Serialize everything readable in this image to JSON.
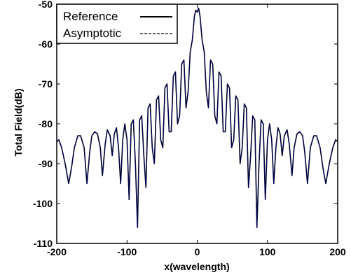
{
  "chart_data": {
    "type": "line",
    "title": "",
    "xlabel": "x(wavelength)",
    "ylabel": "Total Field(dB)",
    "xlim": [
      -200,
      200
    ],
    "ylim": [
      -110,
      -50
    ],
    "xticks": [
      "-200",
      "-100",
      "0",
      "100",
      "200"
    ],
    "yticks": [
      "-50",
      "-60",
      "-70",
      "-80",
      "-90",
      "-100",
      "-110"
    ],
    "grid": false,
    "legend_position": "top-left",
    "series": [
      {
        "name": "Reference",
        "style": "solid",
        "color": "#000000",
        "x": [
          -200,
          -197,
          -193,
          -188,
          -183,
          -179,
          -175,
          -170,
          -166,
          -161,
          -157,
          -153,
          -150,
          -146,
          -142,
          -138,
          -135,
          -131,
          -128,
          -124,
          -121,
          -118,
          -115,
          -112,
          -109,
          -106,
          -103,
          -100,
          -97,
          -94,
          -91,
          -88,
          -85,
          -82,
          -79,
          -76,
          -73,
          -70,
          -67,
          -64,
          -61,
          -58,
          -55,
          -52,
          -49,
          -46,
          -43,
          -40,
          -37,
          -34,
          -31,
          -28,
          -25,
          -22,
          -19,
          -16,
          -13,
          -10,
          -7,
          -4,
          -2,
          0,
          2,
          4,
          7,
          10,
          13,
          16,
          19,
          22,
          25,
          28,
          31,
          34,
          37,
          40,
          43,
          46,
          49,
          52,
          55,
          58,
          61,
          64,
          67,
          70,
          73,
          76,
          79,
          82,
          85,
          88,
          91,
          94,
          97,
          100,
          103,
          106,
          109,
          112,
          115,
          118,
          121,
          124,
          128,
          131,
          135,
          138,
          142,
          146,
          150,
          153,
          157,
          161,
          166,
          170,
          175,
          179,
          183,
          188,
          193,
          197,
          200
        ],
        "y": [
          -84.5,
          -84,
          -86,
          -90,
          -95,
          -91,
          -86,
          -83,
          -83,
          -86,
          -95,
          -87,
          -83,
          -82,
          -82.5,
          -86,
          -93,
          -85,
          -81.5,
          -83,
          -88,
          -82.5,
          -81,
          -86,
          -95,
          -84,
          -80,
          -84,
          -99,
          -80,
          -79,
          -90,
          -106,
          -79,
          -78,
          -88,
          -96,
          -76,
          -75,
          -86,
          -90,
          -74,
          -73,
          -84,
          -86,
          -71,
          -70,
          -82,
          -82,
          -68,
          -67,
          -80,
          -78,
          -65,
          -64,
          -76,
          -72,
          -62,
          -59,
          -53,
          -51.5,
          -52,
          -51,
          -53,
          -59,
          -62,
          -72,
          -76,
          -64,
          -65,
          -78,
          -80,
          -67,
          -68,
          -82,
          -82,
          -70,
          -71,
          -86,
          -84,
          -73,
          -74,
          -90,
          -86,
          -75,
          -76,
          -96,
          -88,
          -78,
          -79,
          -106,
          -90,
          -79,
          -80,
          -99,
          -84,
          -80,
          -84,
          -95,
          -86,
          -81,
          -82.5,
          -88,
          -83,
          -81.5,
          -85,
          -93,
          -86,
          -82.5,
          -82,
          -83,
          -87,
          -95,
          -86,
          -83,
          -83,
          -86,
          -91,
          -95,
          -90,
          -86,
          -84,
          -84.5
        ]
      },
      {
        "name": "Asymptotic",
        "style": "dashed",
        "color": "#00007a",
        "x": [
          -200,
          -197,
          -193,
          -188,
          -183,
          -179,
          -175,
          -170,
          -166,
          -161,
          -157,
          -153,
          -150,
          -146,
          -142,
          -138,
          -135,
          -131,
          -128,
          -124,
          -121,
          -118,
          -115,
          -112,
          -109,
          -106,
          -103,
          -100,
          -97,
          -94,
          -91,
          -88,
          -85,
          -82,
          -79,
          -76,
          -73,
          -70,
          -67,
          -64,
          -61,
          -58,
          -55,
          -52,
          -49,
          -46,
          -43,
          -40,
          -37,
          -34,
          -31,
          -28,
          -25,
          -22,
          -19,
          -16,
          -13,
          -10,
          -7,
          -4,
          -2,
          0,
          2,
          4,
          7,
          10,
          13,
          16,
          19,
          22,
          25,
          28,
          31,
          34,
          37,
          40,
          43,
          46,
          49,
          52,
          55,
          58,
          61,
          64,
          67,
          70,
          73,
          76,
          79,
          82,
          85,
          88,
          91,
          94,
          97,
          100,
          103,
          106,
          109,
          112,
          115,
          118,
          121,
          124,
          128,
          131,
          135,
          138,
          142,
          146,
          150,
          153,
          157,
          161,
          166,
          170,
          175,
          179,
          183,
          188,
          193,
          197,
          200
        ],
        "y": [
          -84.5,
          -84,
          -86,
          -90,
          -95,
          -91,
          -86,
          -83,
          -83,
          -86,
          -95,
          -87,
          -83,
          -82,
          -82.5,
          -86,
          -93,
          -85,
          -81.5,
          -83,
          -88,
          -82.5,
          -81,
          -86,
          -95,
          -84,
          -80,
          -84,
          -99,
          -80,
          -79,
          -90,
          -106,
          -79,
          -78,
          -88,
          -96,
          -76,
          -75,
          -86,
          -90,
          -74,
          -73,
          -84,
          -86,
          -71,
          -70,
          -82,
          -82,
          -68,
          -67,
          -80,
          -78,
          -65,
          -64,
          -76,
          -72,
          -62,
          -59,
          -53,
          -51.5,
          -52,
          -51,
          -53,
          -59,
          -62,
          -72,
          -76,
          -64,
          -65,
          -78,
          -80,
          -67,
          -68,
          -82,
          -82,
          -70,
          -71,
          -86,
          -84,
          -73,
          -74,
          -90,
          -86,
          -75,
          -76,
          -96,
          -88,
          -78,
          -79,
          -106,
          -90,
          -79,
          -80,
          -99,
          -84,
          -80,
          -84,
          -95,
          -86,
          -81,
          -82.5,
          -88,
          -83,
          -81.5,
          -85,
          -93,
          -86,
          -82.5,
          -82,
          -83,
          -87,
          -95,
          -86,
          -83,
          -83,
          -86,
          -91,
          -95,
          -90,
          -86,
          -84,
          -84.5
        ]
      }
    ]
  }
}
